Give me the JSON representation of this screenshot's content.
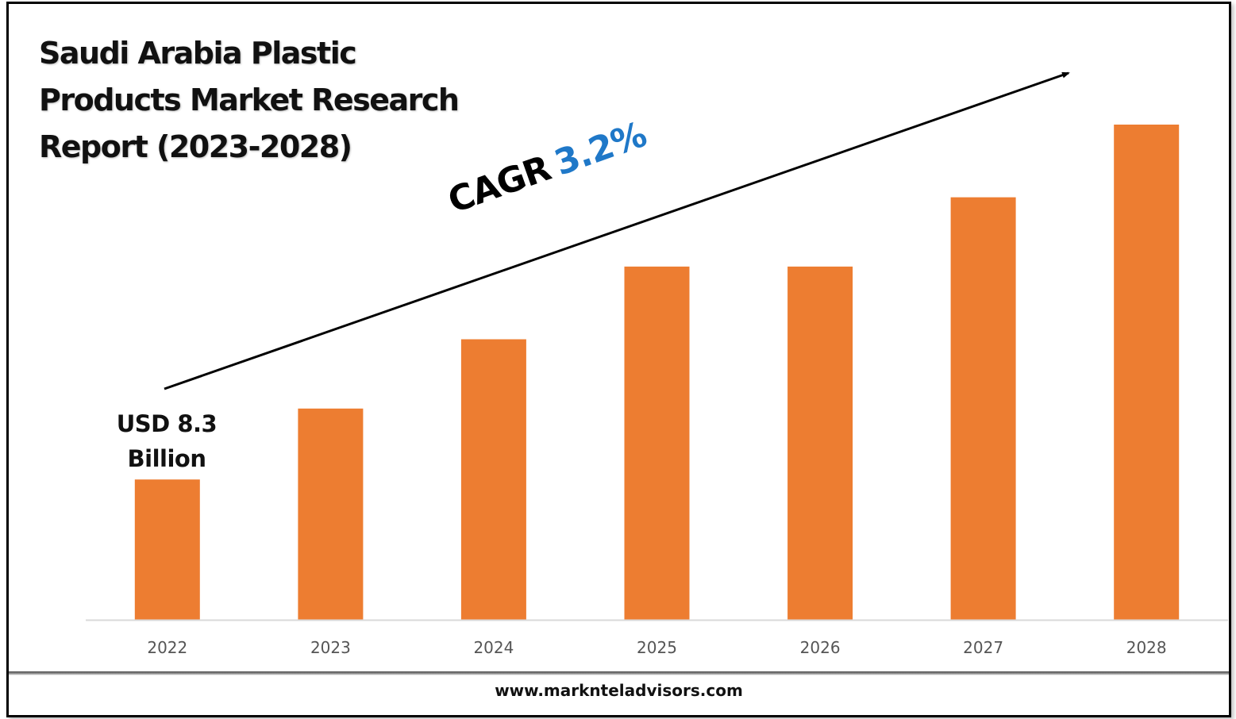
{
  "title_lines": [
    "Saudi Arabia Plastic",
    "Products Market Research",
    "Report (2023-2028)"
  ],
  "cagr": {
    "label": "CAGR",
    "value": "3.2%"
  },
  "annotation": {
    "line1": "USD 8.3",
    "line2": "Billion"
  },
  "footer": {
    "website": "www.marknteladvisors.com"
  },
  "colors": {
    "bar": "#ed7d31",
    "cagr_value": "#1f78c8",
    "axis": "#d9d9d9",
    "tick_text": "#555555"
  },
  "chart_data": {
    "type": "bar",
    "title": "Saudi Arabia Plastic Products Market Research Report (2023-2028)",
    "xlabel": "",
    "ylabel": "",
    "categories": [
      "2022",
      "2023",
      "2024",
      "2025",
      "2026",
      "2027",
      "2028"
    ],
    "values": [
      8.3,
      12.5,
      16.6,
      20.9,
      20.9,
      25.0,
      29.3
    ],
    "units": "USD Billion (only 2022 value labeled; others estimated from bar heights)",
    "ylim": [
      0,
      29.3
    ],
    "grid": false,
    "legend": "none",
    "annotations": [
      "USD 8.3 Billion",
      "CAGR 3.2%"
    ],
    "trend_arrow": true
  }
}
